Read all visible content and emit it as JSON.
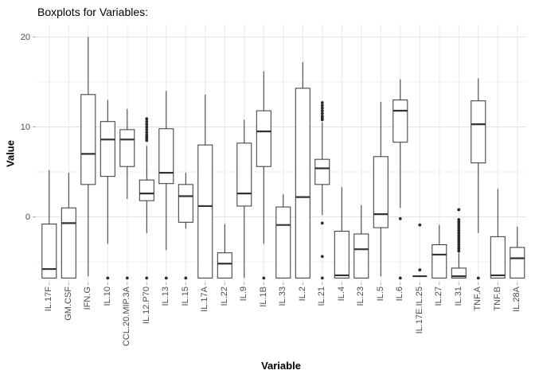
{
  "title": "Boxplots for Variables:",
  "axes": {
    "x_title": "Variable",
    "y_title": "Value",
    "y_tick_labels": [
      "20",
      "10",
      "0"
    ]
  },
  "colors": {
    "box_stroke": "#333333",
    "outlier_fill": "#2b2b2b",
    "grid_major": "#e2e2e2",
    "grid_minor": "#efefef",
    "grid_vertical": "#e8e8e8",
    "axis_tick": "#ababab",
    "tick_label": "#4d4d4d"
  },
  "chart_data": {
    "type": "boxplot",
    "title": "Boxplots for Variables:",
    "xlabel": "Variable",
    "ylabel": "Value",
    "ylim": [
      -7.3,
      21.4
    ],
    "y_major_breaks": [
      20,
      10,
      0
    ],
    "y_minor_breaks": [
      15,
      5,
      -5
    ],
    "grid": true,
    "legend": "none",
    "categories": [
      "IL.17F",
      "GM.CSF",
      "IFN.G",
      "IL.10",
      "CCL.20.MIP.3A",
      "IL.12.P70",
      "IL.13",
      "IL.15",
      "IL.17A",
      "IL.22",
      "IL.9",
      "IL.1B",
      "IL.33",
      "IL.2",
      "IL.21",
      "IL.4",
      "IL.23",
      "IL.5",
      "IL.6",
      "IL.17E.IL.25",
      "IL.27",
      "IL.31",
      "TNF.A",
      "TNF.B",
      "IL.28A"
    ],
    "series": [
      {
        "name": "IL.17F",
        "whisker_low": -6.8,
        "q1": -6.8,
        "median": -5.8,
        "q3": -0.8,
        "whisker_high": 5.2,
        "outliers": []
      },
      {
        "name": "GM.CSF",
        "whisker_low": -6.8,
        "q1": -6.8,
        "median": -0.7,
        "q3": 1.0,
        "whisker_high": 4.9,
        "outliers": []
      },
      {
        "name": "IFN.G",
        "whisker_low": -6.6,
        "q1": 3.6,
        "median": 7.0,
        "q3": 13.6,
        "whisker_high": 20.0,
        "outliers": []
      },
      {
        "name": "IL.10",
        "whisker_low": -3.0,
        "q1": 4.5,
        "median": 8.6,
        "q3": 10.6,
        "whisker_high": 13.0,
        "outliers": [
          -6.8
        ]
      },
      {
        "name": "CCL.20.MIP.3A",
        "whisker_low": 2.0,
        "q1": 5.6,
        "median": 8.6,
        "q3": 9.7,
        "whisker_high": 12.0,
        "outliers": [
          -6.8
        ]
      },
      {
        "name": "IL.12.P70",
        "whisker_low": -1.8,
        "q1": 1.8,
        "median": 2.6,
        "q3": 4.1,
        "whisker_high": 7.9,
        "outliers": [
          8.5,
          8.7,
          8.9,
          9.1,
          9.4,
          9.7,
          10.0,
          10.3,
          10.6,
          10.9,
          -6.8
        ]
      },
      {
        "name": "IL.13",
        "whisker_low": -3.7,
        "q1": 3.7,
        "median": 4.9,
        "q3": 9.8,
        "whisker_high": 14.0,
        "outliers": [
          -6.8
        ]
      },
      {
        "name": "IL.15",
        "whisker_low": -1.3,
        "q1": -0.6,
        "median": 2.3,
        "q3": 3.6,
        "whisker_high": 4.9,
        "outliers": [
          -6.8
        ]
      },
      {
        "name": "IL.17A",
        "whisker_low": -6.8,
        "q1": -6.8,
        "median": 1.2,
        "q3": 8.0,
        "whisker_high": 13.6,
        "outliers": []
      },
      {
        "name": "IL.22",
        "whisker_low": -6.8,
        "q1": -6.8,
        "median": -5.2,
        "q3": -4.0,
        "whisker_high": -0.8,
        "outliers": []
      },
      {
        "name": "IL.9",
        "whisker_low": -6.8,
        "q1": 1.2,
        "median": 2.6,
        "q3": 8.2,
        "whisker_high": 10.8,
        "outliers": []
      },
      {
        "name": "IL.1B",
        "whisker_low": -3.0,
        "q1": 5.6,
        "median": 9.5,
        "q3": 11.8,
        "whisker_high": 16.2,
        "outliers": [
          -6.8
        ]
      },
      {
        "name": "IL.33",
        "whisker_low": -6.8,
        "q1": -6.8,
        "median": -0.9,
        "q3": 1.1,
        "whisker_high": 2.5,
        "outliers": []
      },
      {
        "name": "IL.2",
        "whisker_low": -6.8,
        "q1": -6.8,
        "median": 2.2,
        "q3": 14.3,
        "whisker_high": 17.2,
        "outliers": []
      },
      {
        "name": "IL.21",
        "whisker_low": 0.2,
        "q1": 3.6,
        "median": 5.4,
        "q3": 6.4,
        "whisker_high": 10.5,
        "outliers": [
          10.8,
          11.0,
          11.2,
          11.5,
          11.8,
          12.1,
          12.4,
          12.7,
          -0.7,
          -4.4,
          -6.8
        ]
      },
      {
        "name": "IL.4",
        "whisker_low": -6.8,
        "q1": -6.8,
        "median": -6.5,
        "q3": -1.6,
        "whisker_high": 3.3,
        "outliers": []
      },
      {
        "name": "IL.23",
        "whisker_low": -6.8,
        "q1": -6.8,
        "median": -3.6,
        "q3": -1.9,
        "whisker_high": 1.3,
        "outliers": []
      },
      {
        "name": "IL.5",
        "whisker_low": -6.6,
        "q1": -1.2,
        "median": 0.3,
        "q3": 6.7,
        "whisker_high": 12.8,
        "outliers": []
      },
      {
        "name": "IL.6",
        "whisker_low": 1.0,
        "q1": 8.3,
        "median": 11.8,
        "q3": 13.0,
        "whisker_high": 15.3,
        "outliers": [
          -0.2,
          -6.8
        ]
      },
      {
        "name": "IL.17E.IL.25",
        "whisker_low": -6.6,
        "q1": -6.6,
        "median": -6.6,
        "q3": -6.6,
        "whisker_high": -6.6,
        "outliers": [
          -0.9,
          -5.9
        ]
      },
      {
        "name": "IL.27",
        "whisker_low": -6.8,
        "q1": -6.8,
        "median": -4.2,
        "q3": -3.1,
        "whisker_high": -0.9,
        "outliers": []
      },
      {
        "name": "IL.31",
        "whisker_low": -6.8,
        "q1": -6.8,
        "median": -6.6,
        "q3": -5.7,
        "whisker_high": -4.0,
        "outliers": [
          0.8,
          -0.3,
          -0.55,
          -0.8,
          -1.05,
          -1.3,
          -1.55,
          -1.8,
          -2.05,
          -2.3,
          -2.55,
          -2.8,
          -3.05,
          -3.3,
          -3.55,
          -3.8
        ]
      },
      {
        "name": "TNF.A",
        "whisker_low": -1.8,
        "q1": 6.0,
        "median": 10.3,
        "q3": 12.9,
        "whisker_high": 15.4,
        "outliers": [
          -6.8
        ]
      },
      {
        "name": "TNF.B",
        "whisker_low": -6.8,
        "q1": -6.8,
        "median": -6.5,
        "q3": -2.2,
        "whisker_high": 3.1,
        "outliers": []
      },
      {
        "name": "IL.28A",
        "whisker_low": -6.8,
        "q1": -6.8,
        "median": -4.6,
        "q3": -3.4,
        "whisker_high": -1.1,
        "outliers": []
      }
    ]
  }
}
